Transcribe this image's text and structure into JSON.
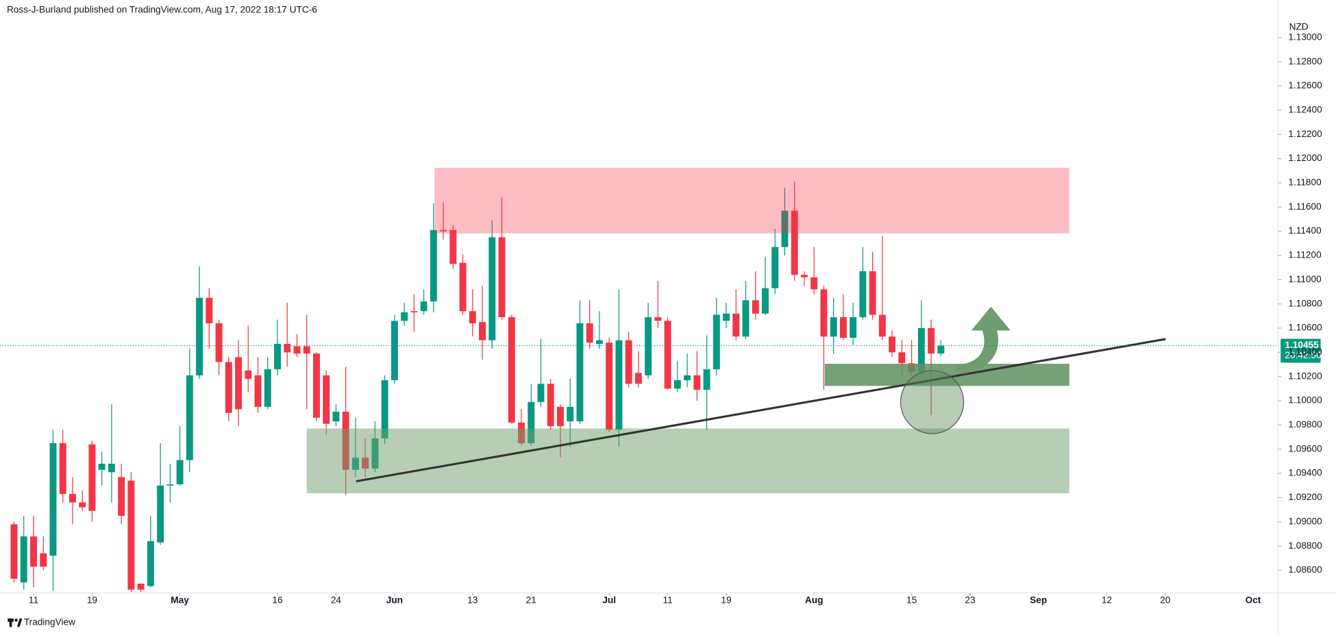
{
  "header": "Ross-J-Burland published on TradingView.com, Aug 17, 2022 18:17 UTC-6",
  "footer": "TradingView",
  "chart_data": {
    "type": "candlestick",
    "currency": "NZD",
    "up_color": "#089981",
    "down_color": "#f23645",
    "open": [
      1.0898,
      1.085,
      1.0888,
      1.0874,
      1.0872,
      1.0965,
      1.0923,
      1.0916,
      1.0964,
      1.0943,
      1.0941,
      1.0937,
      1.0934,
      1.0849,
      1.0847,
      1.0883,
      1.093,
      1.0931,
      1.0951,
      1.1021,
      1.1085,
      1.1064,
      1.1032,
      1.1036,
      1.1025,
      1.1021,
      1.0995,
      1.1026,
      1.1047,
      1.1045,
      1.1045,
      1.1039,
      1.1021,
      1.0983,
      1.0991,
      1.0943,
      1.0953,
      1.0944,
      1.0969,
      1.1017,
      1.1066,
      1.1074,
      1.1074,
      1.1082,
      1.1141,
      1.1141,
      1.1114,
      1.1074,
      1.1065,
      1.105,
      1.1135,
      1.1069,
      1.0982,
      1.0965,
      1.0999,
      1.1014,
      1.0995,
      1.0983,
      1.0983,
      1.1064,
      1.1047,
      1.1048,
      1.0976,
      1.105,
      1.1023,
      1.1021,
      1.1069,
      1.1066,
      1.101,
      1.1017,
      1.1021,
      1.1009,
      1.1026,
      1.1066,
      1.1072,
      1.1053,
      1.1083,
      1.1072,
      1.1093,
      1.1127,
      1.1157,
      1.1104,
      1.1102,
      1.1092,
      1.1053,
      1.1069,
      1.1052,
      1.1069,
      1.1107,
      1.1071,
      1.1053,
      1.104,
      1.1031,
      1.1024,
      1.106,
      1.1039
    ],
    "high": [
      1.09,
      1.0905,
      1.0905,
      1.0888,
      1.0976,
      1.0976,
      1.0937,
      1.0926,
      1.0967,
      1.0958,
      1.0997,
      1.0948,
      1.0941,
      1.0849,
      1.0905,
      1.0965,
      1.0948,
      1.0979,
      1.1043,
      1.1111,
      1.1093,
      1.1067,
      1.1036,
      1.105,
      1.1062,
      1.1036,
      1.1036,
      1.1067,
      1.1081,
      1.1055,
      1.1071,
      1.104,
      1.1025,
      1.0997,
      1.1028,
      1.0986,
      1.0969,
      1.0983,
      1.1021,
      1.1071,
      1.1081,
      1.1088,
      1.1092,
      1.1163,
      1.1164,
      1.1145,
      1.1121,
      1.1092,
      1.1095,
      1.1149,
      1.1168,
      1.1071,
      1.0993,
      1.1014,
      1.1051,
      1.1018,
      1.0997,
      1.1018,
      1.1083,
      1.1083,
      1.1074,
      1.1052,
      1.1092,
      1.1057,
      1.1041,
      1.1081,
      1.1099,
      1.1069,
      1.1033,
      1.1039,
      1.1041,
      1.1054,
      1.1085,
      1.1081,
      1.1092,
      1.1099,
      1.1107,
      1.1119,
      1.1142,
      1.1176,
      1.1181,
      1.1107,
      1.1127,
      1.1095,
      1.1085,
      1.1088,
      1.1081,
      1.1127,
      1.1123,
      1.1136,
      1.1058,
      1.105,
      1.105,
      1.1083,
      1.1067,
      1.105
    ],
    "low": [
      1.085,
      1.0844,
      1.0846,
      1.086,
      1.0843,
      1.0916,
      1.0898,
      1.0909,
      1.09,
      1.093,
      1.0916,
      1.0898,
      1.0842,
      1.0842,
      1.0846,
      1.0881,
      1.0916,
      1.093,
      1.0941,
      1.1018,
      1.1043,
      1.1021,
      1.0983,
      1.0979,
      1.1007,
      1.099,
      1.0993,
      1.1021,
      1.1028,
      1.1036,
      1.0993,
      1.0983,
      1.0972,
      1.0979,
      1.0922,
      1.0937,
      1.0937,
      1.0941,
      1.0964,
      1.1014,
      1.1062,
      1.1057,
      1.1071,
      1.1073,
      1.1133,
      1.1109,
      1.1071,
      1.1053,
      1.1034,
      1.1043,
      1.1067,
      1.0981,
      1.0963,
      1.0963,
      1.0995,
      1.0976,
      1.0953,
      1.0962,
      1.0981,
      1.1043,
      1.1043,
      1.0974,
      1.0962,
      1.1011,
      1.1011,
      1.1018,
      1.106,
      1.1009,
      1.1007,
      1.1011,
      1.1,
      1.0976,
      1.1021,
      1.106,
      1.105,
      1.1051,
      1.1067,
      1.1071,
      1.1088,
      1.112,
      1.1099,
      1.1095,
      1.1088,
      1.1009,
      1.1039,
      1.105,
      1.1046,
      1.1067,
      1.1067,
      1.105,
      1.1036,
      1.1021,
      1.1021,
      1.1021,
      1.0988,
      1.1037
    ],
    "close": [
      1.0853,
      1.0888,
      1.0863,
      1.0863,
      1.0965,
      1.0923,
      1.0916,
      1.0912,
      1.0909,
      1.0948,
      1.0948,
      1.0905,
      1.0844,
      1.0844,
      1.0884,
      1.093,
      1.0931,
      1.0951,
      1.1021,
      1.1085,
      1.1064,
      1.1032,
      1.099,
      1.0993,
      1.1018,
      1.0995,
      1.1026,
      1.1047,
      1.104,
      1.1039,
      1.1039,
      1.0986,
      1.0981,
      1.0991,
      1.0943,
      1.0953,
      1.0944,
      1.0969,
      1.1017,
      1.1066,
      1.1073,
      1.1073,
      1.1082,
      1.1141,
      1.114,
      1.1113,
      1.1074,
      1.1064,
      1.105,
      1.1135,
      1.1069,
      1.0982,
      1.0965,
      1.0999,
      1.1014,
      1.0979,
      1.0979,
      1.0995,
      1.1064,
      1.1048,
      1.105,
      1.0976,
      1.105,
      1.1014,
      1.1014,
      1.1069,
      1.1066,
      1.101,
      1.1017,
      1.1021,
      1.1009,
      1.1026,
      1.1071,
      1.1072,
      1.1053,
      1.1083,
      1.1072,
      1.1093,
      1.1127,
      1.1157,
      1.1104,
      1.1102,
      1.1092,
      1.1053,
      1.1069,
      1.1052,
      1.1069,
      1.1107,
      1.1071,
      1.1053,
      1.104,
      1.1031,
      1.1024,
      1.106,
      1.1039,
      1.10455
    ],
    "last_price": 1.10455,
    "countdown": "20:42:50",
    "xlim": [
      -1.44,
      129.56
    ],
    "xticks": [
      {
        "value": 2,
        "label": "11"
      },
      {
        "value": 8,
        "label": "19"
      },
      {
        "value": 17,
        "label": "May"
      },
      {
        "value": 27,
        "label": "16"
      },
      {
        "value": 33,
        "label": "24"
      },
      {
        "value": 39,
        "label": "Jun"
      },
      {
        "value": 47,
        "label": "13"
      },
      {
        "value": 53,
        "label": "21"
      },
      {
        "value": 61,
        "label": "Jul"
      },
      {
        "value": 67,
        "label": "11"
      },
      {
        "value": 73,
        "label": "19"
      },
      {
        "value": 82,
        "label": "Aug"
      },
      {
        "value": 92,
        "label": "15"
      },
      {
        "value": 98,
        "label": "23"
      },
      {
        "value": 105,
        "label": "Sep"
      },
      {
        "value": 112,
        "label": "12"
      },
      {
        "value": 118,
        "label": "20"
      },
      {
        "value": 127,
        "label": "Oct"
      }
    ],
    "ylim": [
      1.0842,
      1.1331
    ],
    "yticks": [
      {
        "value": 1.13,
        "label": "1.13000"
      },
      {
        "value": 1.128,
        "label": "1.12800"
      },
      {
        "value": 1.126,
        "label": "1.12600"
      },
      {
        "value": 1.124,
        "label": "1.12400"
      },
      {
        "value": 1.122,
        "label": "1.12200"
      },
      {
        "value": 1.12,
        "label": "1.12000"
      },
      {
        "value": 1.118,
        "label": "1.11800"
      },
      {
        "value": 1.116,
        "label": "1.11600"
      },
      {
        "value": 1.114,
        "label": "1.11400"
      },
      {
        "value": 1.112,
        "label": "1.11200"
      },
      {
        "value": 1.11,
        "label": "1.11000"
      },
      {
        "value": 1.108,
        "label": "1.10800"
      },
      {
        "value": 1.106,
        "label": "1.10600"
      },
      {
        "value": 1.104,
        "label": "1.10400"
      },
      {
        "value": 1.102,
        "label": "1.10200"
      },
      {
        "value": 1.1,
        "label": "1.10000"
      },
      {
        "value": 1.098,
        "label": "1.09800"
      },
      {
        "value": 1.096,
        "label": "1.09600"
      },
      {
        "value": 1.094,
        "label": "1.09400"
      },
      {
        "value": 1.092,
        "label": "1.09200"
      },
      {
        "value": 1.09,
        "label": "1.09000"
      },
      {
        "value": 1.088,
        "label": "1.08800"
      },
      {
        "value": 1.086,
        "label": "1.08600"
      }
    ]
  }
}
